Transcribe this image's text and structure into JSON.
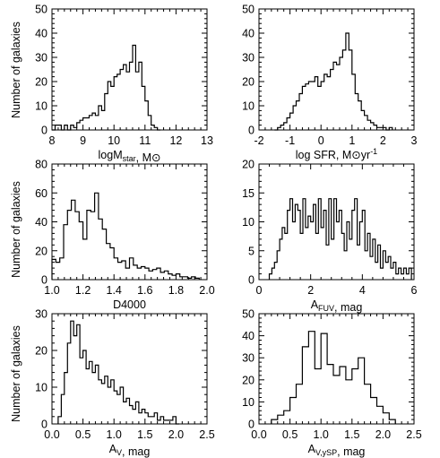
{
  "figure": {
    "ylabel_rows": [
      "Number of galaxies",
      "Number of galaxies",
      "Number of galaxies"
    ]
  },
  "chart_data": [
    {
      "type": "histogram",
      "title": "",
      "xlabel": "logMₛₜₐᵣ, M⊙",
      "xlabel_parts": [
        {
          "t": "logM",
          "sub": false
        },
        {
          "t": "star",
          "sub": true
        },
        {
          "t": ", M⊙",
          "sub": false
        }
      ],
      "ylabel": "Number of galaxies",
      "xlim": [
        8,
        13
      ],
      "ylim": [
        0,
        50
      ],
      "xticks": [
        "8",
        "9",
        "10",
        "11",
        "12",
        "13"
      ],
      "yticks": [
        "0",
        "10",
        "20",
        "30",
        "40",
        "50"
      ],
      "bin_edges": [
        8.0,
        8.1,
        8.2,
        8.3,
        8.4,
        8.5,
        8.6,
        8.7,
        8.8,
        8.9,
        9.0,
        9.1,
        9.2,
        9.3,
        9.4,
        9.5,
        9.6,
        9.7,
        9.8,
        9.9,
        10.0,
        10.1,
        10.2,
        10.3,
        10.4,
        10.5,
        10.6,
        10.7,
        10.8,
        10.9,
        11.0,
        11.1,
        11.2,
        11.3,
        11.4,
        11.5
      ],
      "counts": [
        0,
        2,
        2,
        0,
        2,
        0,
        2,
        1,
        3,
        4,
        5,
        5,
        6,
        7,
        6,
        10,
        8,
        15,
        20,
        18,
        22,
        23,
        25,
        27,
        24,
        28,
        35,
        24,
        28,
        18,
        12,
        6,
        2,
        1,
        0
      ]
    },
    {
      "type": "histogram",
      "title": "",
      "xlabel": "log SFR, M⊙yr⁻¹",
      "xlabel_parts": [
        {
          "t": "log SFR, M⊙yr",
          "sub": false
        },
        {
          "t": "-1",
          "sup": true
        }
      ],
      "ylabel": "",
      "xlim": [
        -2,
        3
      ],
      "ylim": [
        0,
        50
      ],
      "xticks": [
        "-2",
        "-1",
        "0",
        "1",
        "2",
        "3"
      ],
      "yticks": [
        "0",
        "10",
        "20",
        "30",
        "40",
        "50"
      ],
      "bin_edges": [
        -1.5,
        -1.4,
        -1.3,
        -1.2,
        -1.1,
        -1.0,
        -0.9,
        -0.8,
        -0.7,
        -0.6,
        -0.5,
        -0.4,
        -0.3,
        -0.2,
        -0.1,
        0.0,
        0.1,
        0.2,
        0.3,
        0.4,
        0.5,
        0.6,
        0.7,
        0.8,
        0.9,
        1.0,
        1.1,
        1.2,
        1.3,
        1.4,
        1.5,
        1.6,
        1.7,
        1.8,
        1.9,
        2.0,
        2.1,
        2.2,
        2.3
      ],
      "counts": [
        0,
        1,
        2,
        3,
        5,
        7,
        10,
        12,
        15,
        18,
        19,
        20,
        20,
        22,
        18,
        20,
        23,
        22,
        25,
        28,
        27,
        30,
        33,
        40,
        33,
        23,
        15,
        12,
        8,
        6,
        4,
        3,
        2,
        1,
        1,
        1,
        0,
        1
      ]
    },
    {
      "type": "histogram",
      "title": "",
      "xlabel": "D4000",
      "xlabel_parts": [
        {
          "t": "D4000",
          "sub": false
        }
      ],
      "ylabel": "Number of galaxies",
      "xlim": [
        1.0,
        2.0
      ],
      "ylim": [
        0,
        80
      ],
      "xticks": [
        "1.0",
        "1.2",
        "1.4",
        "1.6",
        "1.8",
        "2.0"
      ],
      "yticks": [
        "0",
        "20",
        "40",
        "60",
        "80"
      ],
      "bin_edges": [
        1.0,
        1.025,
        1.05,
        1.075,
        1.1,
        1.125,
        1.15,
        1.175,
        1.2,
        1.225,
        1.25,
        1.275,
        1.3,
        1.325,
        1.35,
        1.375,
        1.4,
        1.425,
        1.45,
        1.475,
        1.5,
        1.525,
        1.55,
        1.575,
        1.6,
        1.625,
        1.65,
        1.675,
        1.7,
        1.725,
        1.75,
        1.775,
        1.8,
        1.825,
        1.85,
        1.875,
        1.9,
        1.925,
        1.95
      ],
      "counts": [
        14,
        12,
        15,
        38,
        48,
        55,
        47,
        40,
        28,
        48,
        47,
        60,
        42,
        35,
        25,
        22,
        15,
        12,
        13,
        8,
        15,
        10,
        8,
        9,
        8,
        6,
        7,
        8,
        5,
        6,
        4,
        3,
        4,
        2,
        2,
        1,
        2,
        1
      ]
    },
    {
      "type": "histogram",
      "title": "",
      "xlabel": "A_FUV, mag",
      "xlabel_parts": [
        {
          "t": "A",
          "sub": false
        },
        {
          "t": "FUV",
          "sub": true
        },
        {
          "t": ", mag",
          "sub": false
        }
      ],
      "ylabel": "",
      "xlim": [
        0,
        6
      ],
      "ylim": [
        0,
        20
      ],
      "xticks": [
        "0",
        "2",
        "4",
        "6"
      ],
      "yticks": [
        "0",
        "5",
        "10",
        "15",
        "20"
      ],
      "bin_edges": [
        0.4,
        0.5,
        0.6,
        0.7,
        0.8,
        0.9,
        1.0,
        1.1,
        1.2,
        1.3,
        1.4,
        1.5,
        1.6,
        1.7,
        1.8,
        1.9,
        2.0,
        2.1,
        2.2,
        2.3,
        2.4,
        2.5,
        2.6,
        2.7,
        2.8,
        2.9,
        3.0,
        3.1,
        3.2,
        3.3,
        3.4,
        3.5,
        3.6,
        3.7,
        3.8,
        3.9,
        4.0,
        4.1,
        4.2,
        4.3,
        4.4,
        4.5,
        4.6,
        4.7,
        4.8,
        4.9,
        5.0,
        5.1,
        5.2,
        5.3,
        5.4,
        5.5,
        5.6,
        5.7,
        5.8,
        5.9
      ],
      "counts": [
        1,
        2,
        3,
        5,
        7,
        9,
        8,
        12,
        14,
        10,
        13,
        12,
        8,
        14,
        9,
        11,
        10,
        13,
        8,
        14,
        9,
        12,
        6,
        14,
        7,
        14,
        10,
        12,
        8,
        5,
        10,
        7,
        12,
        14,
        6,
        10,
        12,
        5,
        8,
        4,
        7,
        3,
        6,
        2,
        5,
        3,
        4,
        2,
        3,
        1,
        2,
        1,
        2,
        1,
        2
      ]
    },
    {
      "type": "histogram",
      "title": "",
      "xlabel": "A_V, mag",
      "xlabel_parts": [
        {
          "t": "A",
          "sub": false
        },
        {
          "t": "V",
          "sub": true
        },
        {
          "t": ", mag",
          "sub": false
        }
      ],
      "ylabel": "Number of galaxies",
      "xlim": [
        0.0,
        2.5
      ],
      "ylim": [
        0,
        30
      ],
      "xticks": [
        "0.0",
        "0.5",
        "1.0",
        "1.5",
        "2.0",
        "2.5"
      ],
      "yticks": [
        "0",
        "10",
        "20",
        "30"
      ],
      "bin_edges": [
        0.1,
        0.15,
        0.2,
        0.25,
        0.3,
        0.35,
        0.4,
        0.45,
        0.5,
        0.55,
        0.6,
        0.65,
        0.7,
        0.75,
        0.8,
        0.85,
        0.9,
        0.95,
        1.0,
        1.05,
        1.1,
        1.15,
        1.2,
        1.25,
        1.3,
        1.35,
        1.4,
        1.45,
        1.5,
        1.55,
        1.6,
        1.65,
        1.7,
        1.75,
        1.8,
        1.85,
        1.9,
        1.95,
        2.0,
        2.05
      ],
      "counts": [
        2,
        8,
        14,
        22,
        28,
        24,
        27,
        18,
        20,
        15,
        17,
        14,
        16,
        12,
        11,
        13,
        10,
        12,
        9,
        8,
        10,
        6,
        7,
        5,
        4,
        6,
        3,
        4,
        3,
        2,
        2,
        3,
        1,
        2,
        1,
        1,
        1,
        2,
        0
      ]
    },
    {
      "type": "histogram",
      "title": "",
      "xlabel": "A_V,ySP, mag",
      "xlabel_parts": [
        {
          "t": "A",
          "sub": false
        },
        {
          "t": "V,ySP",
          "sub": true
        },
        {
          "t": ", mag",
          "sub": false
        }
      ],
      "ylabel": "",
      "xlim": [
        0.0,
        2.5
      ],
      "ylim": [
        0,
        50
      ],
      "xticks": [
        "0.0",
        "0.5",
        "1.0",
        "1.5",
        "2.0",
        "2.5"
      ],
      "yticks": [
        "0",
        "10",
        "20",
        "30",
        "40",
        "50"
      ],
      "bin_edges": [
        0.2,
        0.3,
        0.4,
        0.5,
        0.6,
        0.7,
        0.8,
        0.9,
        1.0,
        1.1,
        1.2,
        1.3,
        1.4,
        1.5,
        1.6,
        1.7,
        1.8,
        1.9,
        2.0,
        2.1,
        2.2
      ],
      "counts": [
        2,
        4,
        6,
        12,
        18,
        35,
        42,
        25,
        41,
        27,
        22,
        26,
        20,
        25,
        30,
        18,
        12,
        8,
        5,
        2
      ]
    }
  ]
}
